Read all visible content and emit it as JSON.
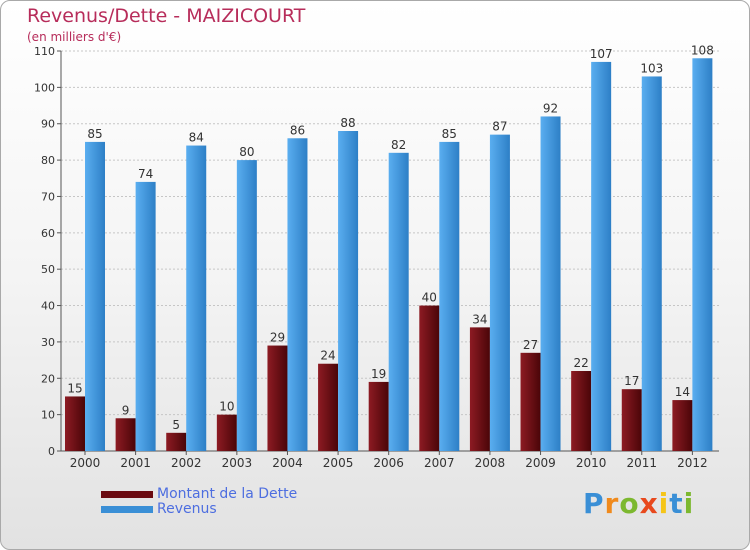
{
  "header": {
    "title": "Revenus/Dette - MAIZICOURT",
    "subtitle": "(en milliers d'€)"
  },
  "legend": {
    "items": [
      {
        "label": "Montant de la Dette",
        "color": "#6a0a10"
      },
      {
        "label": "Revenus",
        "color": "#3a8fd6"
      }
    ]
  },
  "logo": {
    "text": "Proxiti"
  },
  "chart_data": {
    "type": "bar",
    "title": "Revenus/Dette - MAIZICOURT",
    "subtitle": "(en milliers d'€)",
    "xlabel": "",
    "ylabel": "",
    "ylim": [
      0,
      110
    ],
    "yticks": [
      0,
      10,
      20,
      30,
      40,
      50,
      60,
      70,
      80,
      90,
      100,
      110
    ],
    "grid": true,
    "legend_position": "bottom-left",
    "categories": [
      "2000",
      "2001",
      "2002",
      "2003",
      "2004",
      "2005",
      "2006",
      "2007",
      "2008",
      "2009",
      "2010",
      "2011",
      "2012"
    ],
    "series": [
      {
        "name": "Montant de la Dette",
        "color": "#6a0a10",
        "values": [
          15,
          9,
          5,
          10,
          29,
          24,
          19,
          40,
          34,
          27,
          22,
          17,
          14
        ]
      },
      {
        "name": "Revenus",
        "color": "#3a8fd6",
        "values": [
          85,
          74,
          84,
          80,
          86,
          88,
          82,
          85,
          87,
          92,
          107,
          103,
          108
        ]
      }
    ]
  }
}
